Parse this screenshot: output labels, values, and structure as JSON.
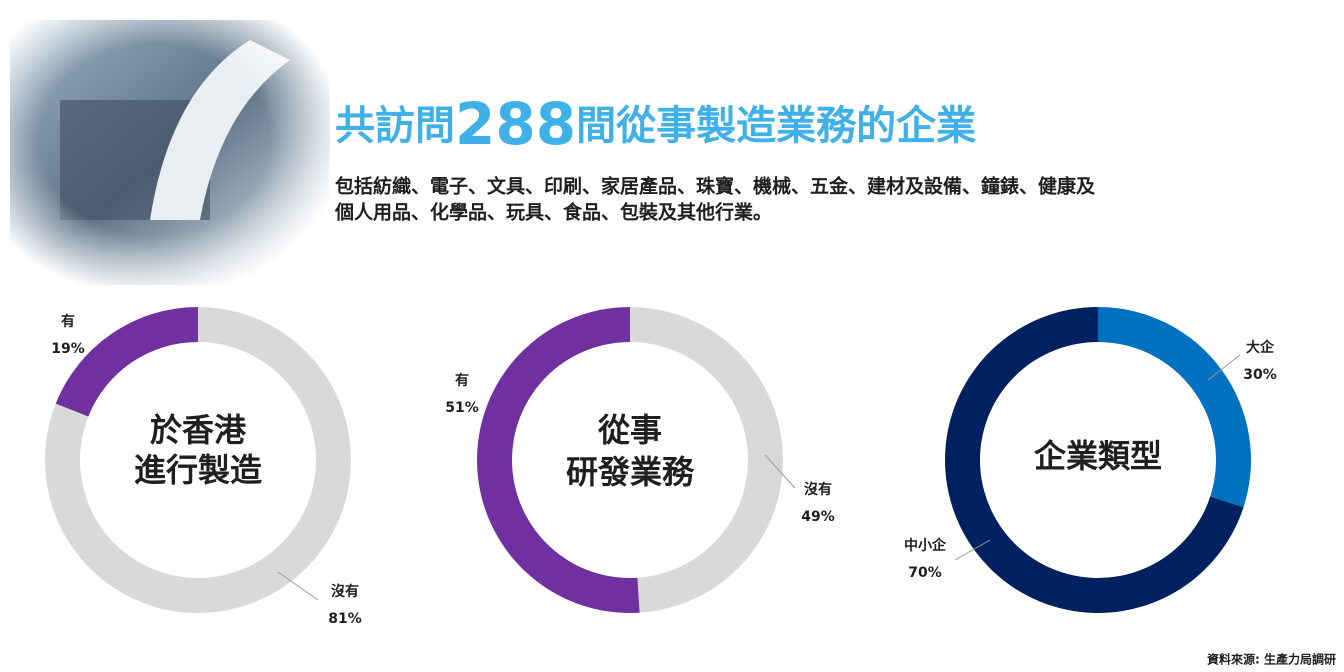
{
  "header": {
    "title_prefix": "共訪問",
    "title_number": "288",
    "title_suffix": "間從事製造業務的企業",
    "subtitle_lines": [
      "包括紡織、電子、文具、印刷、家居產品、珠寶、機械、五金、建材及設備、鐘錶、健康及",
      "個人用品、化學品、玩具、食品、包裝及其他行業。"
    ]
  },
  "chart_data": [
    {
      "type": "donut",
      "title_lines": [
        "於香港",
        "進行製造"
      ],
      "categories": [
        "沒有",
        "有"
      ],
      "values": [
        81,
        19
      ],
      "value_labels": [
        "81%",
        "19%"
      ],
      "colors": [
        "#d9d9d9",
        "#7030a0"
      ]
    },
    {
      "type": "donut",
      "title_lines": [
        "從事",
        "研發業務"
      ],
      "categories": [
        "沒有",
        "有"
      ],
      "values": [
        49,
        51
      ],
      "value_labels": [
        "49%",
        "51%"
      ],
      "colors": [
        "#d9d9d9",
        "#7030a0"
      ]
    },
    {
      "type": "donut",
      "title_lines": [
        "企業類型"
      ],
      "categories": [
        "大企",
        "中小企"
      ],
      "values": [
        30,
        70
      ],
      "value_labels": [
        "30%",
        "70%"
      ],
      "colors": [
        "#0070c0",
        "#002060"
      ]
    }
  ],
  "source": "資料來源: 生產力局調研"
}
